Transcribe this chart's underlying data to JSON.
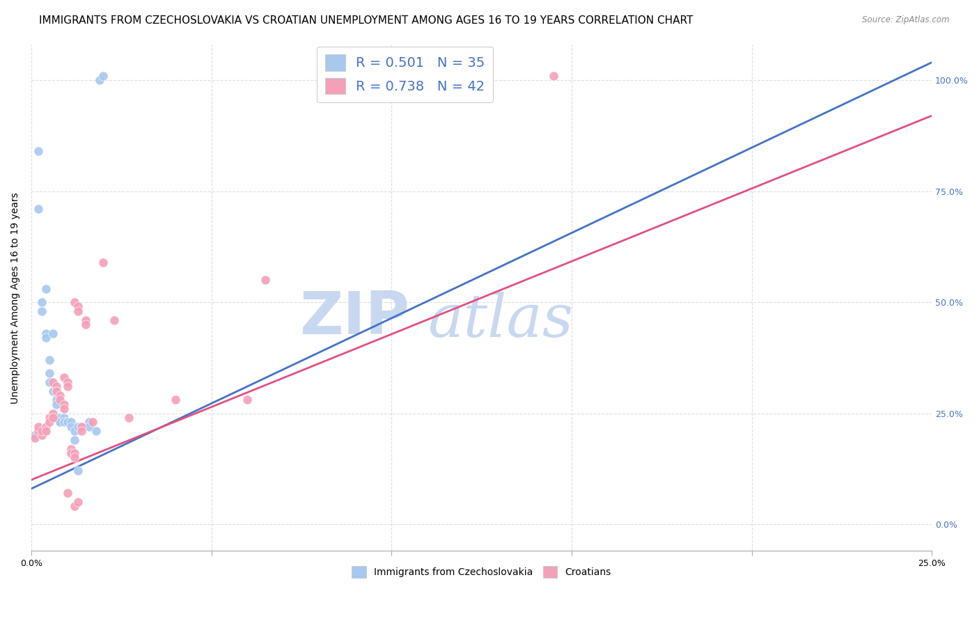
{
  "title": "IMMIGRANTS FROM CZECHOSLOVAKIA VS CROATIAN UNEMPLOYMENT AMONG AGES 16 TO 19 YEARS CORRELATION CHART",
  "source": "Source: ZipAtlas.com",
  "ylabel": "Unemployment Among Ages 16 to 19 years",
  "xlim": [
    0.0,
    0.25
  ],
  "ylim": [
    -0.06,
    1.08
  ],
  "xticks": [
    0.0,
    0.05,
    0.1,
    0.15,
    0.2,
    0.25
  ],
  "xtick_labels": [
    "0.0%",
    "",
    "",
    "",
    "",
    "25.0%"
  ],
  "yticks": [
    0.0,
    0.25,
    0.5,
    0.75,
    1.0
  ],
  "ytick_labels": [
    "0.0%",
    "25.0%",
    "50.0%",
    "75.0%",
    "100.0%"
  ],
  "blue_color": "#A8C8F0",
  "pink_color": "#F4A0B8",
  "blue_line_color": "#4472C4",
  "pink_line_color": "#E05080",
  "blue_scatter": [
    [
      0.001,
      0.2
    ],
    [
      0.002,
      0.84
    ],
    [
      0.002,
      0.71
    ],
    [
      0.003,
      0.48
    ],
    [
      0.003,
      0.5
    ],
    [
      0.004,
      0.53
    ],
    [
      0.004,
      0.43
    ],
    [
      0.004,
      0.42
    ],
    [
      0.005,
      0.37
    ],
    [
      0.005,
      0.34
    ],
    [
      0.005,
      0.32
    ],
    [
      0.006,
      0.43
    ],
    [
      0.006,
      0.3
    ],
    [
      0.007,
      0.28
    ],
    [
      0.007,
      0.27
    ],
    [
      0.007,
      0.24
    ],
    [
      0.008,
      0.24
    ],
    [
      0.008,
      0.23
    ],
    [
      0.008,
      0.23
    ],
    [
      0.009,
      0.24
    ],
    [
      0.009,
      0.23
    ],
    [
      0.01,
      0.23
    ],
    [
      0.01,
      0.23
    ],
    [
      0.011,
      0.23
    ],
    [
      0.011,
      0.22
    ],
    [
      0.012,
      0.21
    ],
    [
      0.012,
      0.19
    ],
    [
      0.013,
      0.12
    ],
    [
      0.013,
      0.22
    ],
    [
      0.014,
      0.22
    ],
    [
      0.016,
      0.23
    ],
    [
      0.016,
      0.22
    ],
    [
      0.018,
      0.21
    ],
    [
      0.019,
      1.0
    ],
    [
      0.02,
      1.01
    ]
  ],
  "pink_scatter": [
    [
      0.001,
      0.195
    ],
    [
      0.002,
      0.21
    ],
    [
      0.002,
      0.22
    ],
    [
      0.003,
      0.2
    ],
    [
      0.003,
      0.21
    ],
    [
      0.004,
      0.22
    ],
    [
      0.004,
      0.21
    ],
    [
      0.005,
      0.24
    ],
    [
      0.005,
      0.23
    ],
    [
      0.006,
      0.25
    ],
    [
      0.006,
      0.24
    ],
    [
      0.006,
      0.32
    ],
    [
      0.007,
      0.31
    ],
    [
      0.007,
      0.3
    ],
    [
      0.007,
      0.3
    ],
    [
      0.008,
      0.29
    ],
    [
      0.008,
      0.28
    ],
    [
      0.009,
      0.27
    ],
    [
      0.009,
      0.26
    ],
    [
      0.009,
      0.33
    ],
    [
      0.01,
      0.32
    ],
    [
      0.01,
      0.31
    ],
    [
      0.01,
      0.07
    ],
    [
      0.011,
      0.17
    ],
    [
      0.011,
      0.16
    ],
    [
      0.012,
      0.16
    ],
    [
      0.012,
      0.15
    ],
    [
      0.012,
      0.5
    ],
    [
      0.013,
      0.49
    ],
    [
      0.013,
      0.48
    ],
    [
      0.014,
      0.22
    ],
    [
      0.014,
      0.21
    ],
    [
      0.015,
      0.46
    ],
    [
      0.015,
      0.45
    ],
    [
      0.017,
      0.23
    ],
    [
      0.02,
      0.59
    ],
    [
      0.023,
      0.46
    ],
    [
      0.027,
      0.24
    ],
    [
      0.04,
      0.28
    ],
    [
      0.06,
      0.28
    ],
    [
      0.145,
      1.01
    ],
    [
      0.065,
      0.55
    ],
    [
      0.012,
      0.04
    ],
    [
      0.013,
      0.05
    ]
  ],
  "blue_line_x": [
    0.0,
    0.25
  ],
  "blue_line_y": [
    0.08,
    1.04
  ],
  "pink_line_x": [
    0.0,
    0.25
  ],
  "pink_line_y": [
    0.1,
    0.92
  ],
  "watermark_zip": "ZIP",
  "watermark_atlas": "atlas",
  "watermark_color": "#C8D8F0",
  "title_fontsize": 11,
  "axis_label_fontsize": 10,
  "tick_fontsize": 9,
  "legend_fontsize": 14,
  "right_ytick_color": "#4472C4",
  "grid_color": "#DDDDDD",
  "background_color": "#FFFFFF"
}
